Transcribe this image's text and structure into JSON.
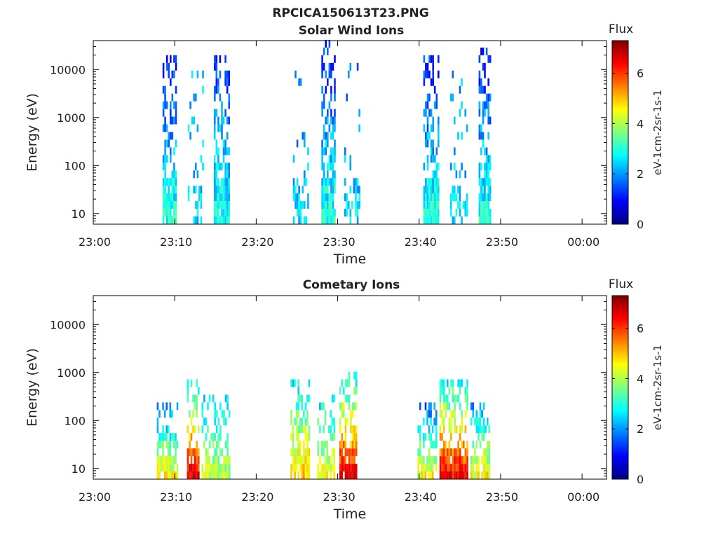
{
  "figure_title": "RPCICA150613T23.PNG",
  "chart_data": [
    {
      "type": "heatmap",
      "title": "Solar Wind Ions",
      "xlabel": "Time",
      "ylabel": "Energy (eV)",
      "y_scale": "log",
      "ylim": [
        6,
        40000
      ],
      "y_ticks": [
        10,
        100,
        1000,
        10000
      ],
      "y_tick_labels": [
        "10",
        "100",
        "1000",
        "10000"
      ],
      "x_range_minutes": [
        0,
        63
      ],
      "x_ticks": [
        0,
        10,
        20,
        30,
        40,
        50,
        60
      ],
      "x_tick_labels": [
        "23:00",
        "23:10",
        "23:20",
        "23:30",
        "23:40",
        "23:50",
        "00:00"
      ],
      "colorbar": {
        "title": "Flux",
        "label": "eV-1cm-2sr-1s-1",
        "range": [
          0,
          7.3
        ],
        "ticks": [
          0,
          2,
          4,
          6
        ],
        "tick_labels": [
          "0",
          "2",
          "4",
          "6"
        ]
      },
      "bursts": [
        {
          "start_min": 8.5,
          "end_min": 10.1,
          "emax": 15000,
          "flux_low": 3.0,
          "flux_high": 1.1,
          "density": 0.6
        },
        {
          "start_min": 11.6,
          "end_min": 13.4,
          "emax": 8000,
          "flux_low": 2.5,
          "flux_high": 2.2,
          "density": 0.12
        },
        {
          "start_min": 14.8,
          "end_min": 16.6,
          "emax": 15000,
          "flux_low": 3.0,
          "flux_high": 1.2,
          "density": 0.6
        },
        {
          "start_min": 24.5,
          "end_min": 26.3,
          "emax": 10000,
          "flux_low": 2.5,
          "flux_high": 1.6,
          "density": 0.1
        },
        {
          "start_min": 28.0,
          "end_min": 29.6,
          "emax": 30000,
          "flux_low": 3.0,
          "flux_high": 1.1,
          "density": 0.6
        },
        {
          "start_min": 30.8,
          "end_min": 32.6,
          "emax": 10000,
          "flux_low": 2.5,
          "flux_high": 1.8,
          "density": 0.12
        },
        {
          "start_min": 40.5,
          "end_min": 42.3,
          "emax": 18000,
          "flux_low": 3.0,
          "flux_high": 1.1,
          "density": 0.6
        },
        {
          "start_min": 43.8,
          "end_min": 45.8,
          "emax": 7000,
          "flux_low": 2.5,
          "flux_high": 2.0,
          "density": 0.12
        },
        {
          "start_min": 47.3,
          "end_min": 48.8,
          "emax": 25000,
          "flux_low": 3.0,
          "flux_high": 1.0,
          "density": 0.6
        }
      ]
    },
    {
      "type": "heatmap",
      "title": "Cometary Ions",
      "xlabel": "Time",
      "ylabel": "Energy (eV)",
      "y_scale": "log",
      "ylim": [
        6,
        40000
      ],
      "y_ticks": [
        10,
        100,
        1000,
        10000
      ],
      "y_tick_labels": [
        "10",
        "100",
        "1000",
        "10000"
      ],
      "x_range_minutes": [
        0,
        63
      ],
      "x_ticks": [
        0,
        10,
        20,
        30,
        40,
        50,
        60
      ],
      "x_tick_labels": [
        "23:00",
        "23:10",
        "23:20",
        "23:30",
        "23:40",
        "23:50",
        "00:00"
      ],
      "colorbar": {
        "title": "Flux",
        "label": "eV-1cm-2sr-1s-1",
        "range": [
          0,
          7.3
        ],
        "ticks": [
          0,
          2,
          4,
          6
        ],
        "tick_labels": [
          "0",
          "2",
          "4",
          "6"
        ]
      },
      "bursts": [
        {
          "start_min": 7.8,
          "end_min": 10.3,
          "emax": 200,
          "flux_low": 4.5,
          "flux_high": 1.5,
          "density": 0.55
        },
        {
          "start_min": 11.5,
          "end_min": 13.0,
          "emax": 600,
          "flux_low": 6.5,
          "flux_high": 2.5,
          "density": 0.55
        },
        {
          "start_min": 13.3,
          "end_min": 16.8,
          "emax": 300,
          "flux_low": 4.0,
          "flux_high": 2.5,
          "density": 0.55
        },
        {
          "start_min": 24.2,
          "end_min": 26.5,
          "emax": 700,
          "flux_low": 5.0,
          "flux_high": 2.5,
          "density": 0.55
        },
        {
          "start_min": 27.5,
          "end_min": 29.5,
          "emax": 250,
          "flux_low": 4.5,
          "flux_high": 2.5,
          "density": 0.5
        },
        {
          "start_min": 30.2,
          "end_min": 32.3,
          "emax": 900,
          "flux_low": 6.5,
          "flux_high": 2.5,
          "density": 0.55
        },
        {
          "start_min": 39.8,
          "end_min": 42.0,
          "emax": 200,
          "flux_low": 4.5,
          "flux_high": 1.5,
          "density": 0.55
        },
        {
          "start_min": 42.5,
          "end_min": 45.8,
          "emax": 700,
          "flux_low": 6.5,
          "flux_high": 2.5,
          "density": 0.6
        },
        {
          "start_min": 46.3,
          "end_min": 48.6,
          "emax": 180,
          "flux_low": 4.5,
          "flux_high": 2.0,
          "density": 0.5
        }
      ]
    }
  ]
}
